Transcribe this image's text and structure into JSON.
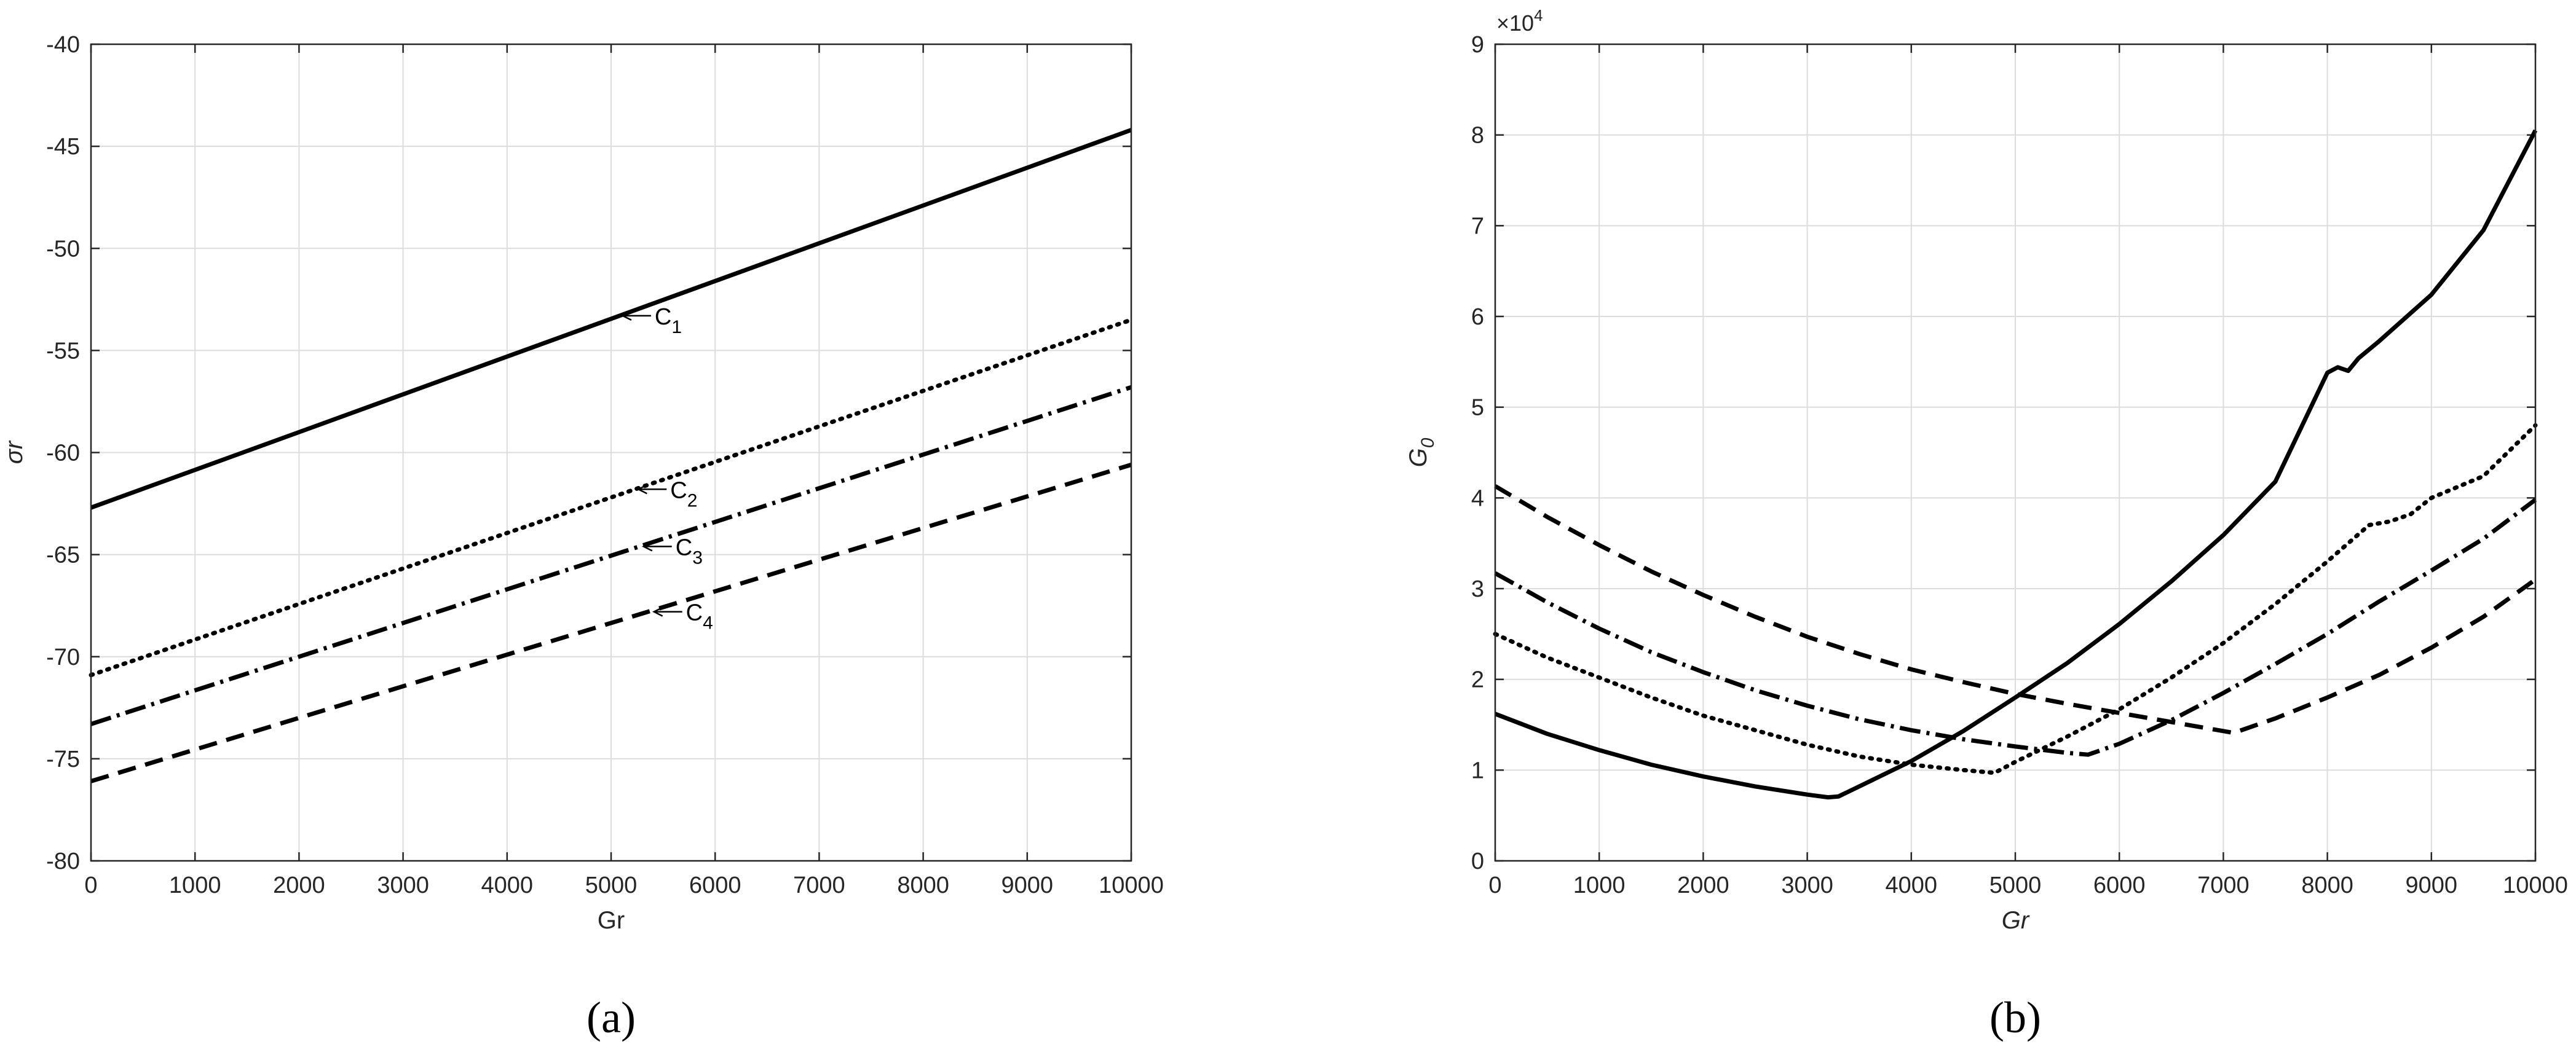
{
  "chart_data": [
    {
      "type": "line",
      "panel": "(a)",
      "xlabel": "Gr",
      "ylabel": "σr",
      "xlim": [
        0,
        10000
      ],
      "ylim": [
        -80,
        -40
      ],
      "xticks": [
        "0",
        "1000",
        "2000",
        "3000",
        "4000",
        "5000",
        "6000",
        "7000",
        "8000",
        "9000",
        "10000"
      ],
      "yticks": [
        "-40",
        "-45",
        "-50",
        "-55",
        "-60",
        "-65",
        "-70",
        "-75",
        "-80"
      ],
      "grid": true,
      "series": [
        {
          "name": "C1",
          "style": "solid",
          "x": [
            0,
            10000
          ],
          "y": [
            -62.7,
            -44.2
          ]
        },
        {
          "name": "C2",
          "style": "dotted",
          "x": [
            0,
            10000
          ],
          "y": [
            -70.9,
            -53.5
          ]
        },
        {
          "name": "C3",
          "style": "dashdot",
          "x": [
            0,
            10000
          ],
          "y": [
            -73.3,
            -56.8
          ]
        },
        {
          "name": "C4",
          "style": "dashed",
          "x": [
            0,
            10000
          ],
          "y": [
            -76.1,
            -60.6
          ]
        }
      ],
      "annotations": [
        {
          "series": "C1",
          "text": "C",
          "sub": "1",
          "x": 5100,
          "y": -53.3
        },
        {
          "series": "C2",
          "text": "C",
          "sub": "2",
          "x": 5250,
          "y": -61.8
        },
        {
          "series": "C3",
          "text": "C",
          "sub": "3",
          "x": 5300,
          "y": -64.6
        },
        {
          "series": "C4",
          "text": "C",
          "sub": "4",
          "x": 5400,
          "y": -67.8
        }
      ]
    },
    {
      "type": "line",
      "panel": "(b)",
      "xlabel": "Gr",
      "ylabel": "G",
      "ylabel_sub": "0",
      "xlim": [
        0,
        10000
      ],
      "ylim": [
        0,
        90000
      ],
      "exponent_label": "×10",
      "exponent_power": "4",
      "xticks": [
        "0",
        "1000",
        "2000",
        "3000",
        "4000",
        "5000",
        "6000",
        "7000",
        "8000",
        "9000",
        "10000"
      ],
      "yticks": [
        "0",
        "1",
        "2",
        "3",
        "4",
        "5",
        "6",
        "7",
        "8",
        "9"
      ],
      "grid": true,
      "series": [
        {
          "style": "solid",
          "x": [
            0,
            500,
            1000,
            1500,
            2000,
            2500,
            3000,
            3200,
            3300,
            3500,
            4000,
            4500,
            5000,
            5500,
            6000,
            6500,
            7000,
            7500,
            8000,
            8100,
            8200,
            8300,
            8500,
            9000,
            9500,
            10000
          ],
          "y": [
            16200,
            14000,
            12200,
            10600,
            9300,
            8200,
            7300,
            7000,
            7100,
            8200,
            11000,
            14300,
            18000,
            21800,
            26100,
            30800,
            35900,
            41800,
            53800,
            54400,
            54000,
            55400,
            57300,
            62400,
            69500,
            80500
          ]
        },
        {
          "style": "dotted",
          "x": [
            0,
            500,
            1000,
            1500,
            2000,
            2500,
            3000,
            3500,
            4000,
            4500,
            4800,
            5000,
            5500,
            6000,
            6500,
            7000,
            7500,
            8000,
            8400,
            8600,
            8800,
            9000,
            9500,
            10000
          ],
          "y": [
            25000,
            22400,
            20200,
            18000,
            16000,
            14400,
            12800,
            11500,
            10600,
            10000,
            9700,
            10900,
            13700,
            16700,
            20200,
            24000,
            28300,
            33000,
            37000,
            37400,
            38200,
            40000,
            42400,
            48000
          ]
        },
        {
          "style": "dashdot",
          "x": [
            0,
            500,
            1000,
            1500,
            2000,
            2500,
            3000,
            3500,
            4000,
            4500,
            5000,
            5500,
            5700,
            6000,
            6500,
            7000,
            7500,
            8000,
            8500,
            9000,
            9500,
            10000
          ],
          "y": [
            31700,
            28500,
            25600,
            23000,
            20800,
            18800,
            17100,
            15600,
            14400,
            13400,
            12600,
            11900,
            11700,
            12900,
            15500,
            18500,
            21700,
            25000,
            28600,
            32000,
            35500,
            39800
          ]
        },
        {
          "style": "dashed",
          "x": [
            0,
            500,
            1000,
            1500,
            2000,
            2500,
            3000,
            3500,
            4000,
            4500,
            5000,
            5500,
            6000,
            6500,
            7000,
            7100,
            7500,
            8000,
            8500,
            9000,
            9500,
            10000
          ],
          "y": [
            41300,
            37900,
            34800,
            31900,
            29300,
            26900,
            24700,
            22800,
            21100,
            19700,
            18400,
            17300,
            16300,
            15300,
            14300,
            14100,
            15700,
            18000,
            20500,
            23500,
            26900,
            31000
          ]
        }
      ]
    }
  ]
}
